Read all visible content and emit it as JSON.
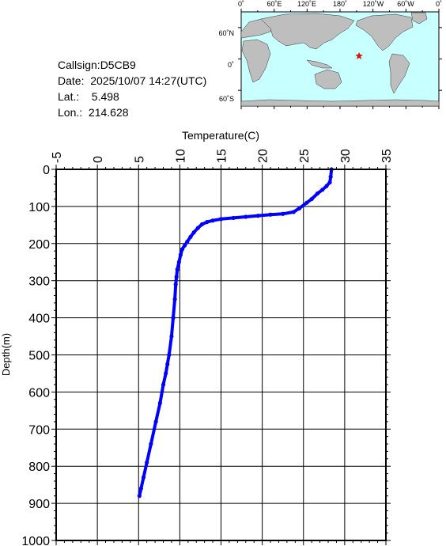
{
  "info": {
    "callsign": "Callsign:D5CB9",
    "date": "Date:  2025/10/07 14:27(UTC)",
    "lat": "Lat.:    5.498",
    "lon": "Lon.:  214.628"
  },
  "map": {
    "top_labels": [
      "0˚",
      "60˚E",
      "120˚E",
      "180˚",
      "120˚W",
      "60˚W",
      "0˚"
    ],
    "left_labels": [
      "60˚N",
      "0˚",
      "60˚S"
    ],
    "ocean_color": "#c8ffff",
    "land_color": "#bebebe",
    "marker_color": "#ff0000",
    "marker_lon": 214.628,
    "marker_lat": 5.498
  },
  "chart_data": {
    "type": "line",
    "title": "",
    "xlabel": "Temperature(C)",
    "ylabel": "Depth(m)",
    "xlim": [
      -5,
      35
    ],
    "ylim": [
      1000,
      0
    ],
    "xticks": [
      "-5",
      "0",
      "5",
      "10",
      "15",
      "20",
      "25",
      "30",
      "35"
    ],
    "yticks": [
      "0",
      "100",
      "200",
      "300",
      "400",
      "500",
      "600",
      "700",
      "800",
      "900",
      "1000"
    ],
    "grid": true,
    "line_color": "#0000ff",
    "series": [
      {
        "x": [
          28.4,
          28.3,
          28.2,
          27.8,
          27.3,
          26.7,
          26.0,
          25.4,
          24.5,
          23.8,
          22.5,
          21.0,
          19.5,
          18.0,
          16.5,
          15.0,
          14.0,
          13.3,
          12.7,
          12.2,
          11.7,
          11.3,
          10.9,
          10.6,
          10.3,
          10.1,
          9.9,
          9.7,
          9.6,
          9.5,
          9.4,
          9.2,
          9.0,
          8.7,
          8.5,
          8.3,
          8.0,
          7.6,
          7.1,
          6.5,
          6.0,
          5.6,
          5.3,
          5.1
        ],
        "y": [
          0,
          20,
          35,
          45,
          55,
          65,
          80,
          90,
          105,
          115,
          120,
          122,
          125,
          128,
          131,
          134,
          138,
          142,
          148,
          158,
          170,
          182,
          195,
          205,
          215,
          230,
          250,
          270,
          290,
          310,
          350,
          400,
          450,
          500,
          525,
          550,
          580,
          630,
          680,
          740,
          790,
          830,
          860,
          880
        ]
      }
    ]
  }
}
